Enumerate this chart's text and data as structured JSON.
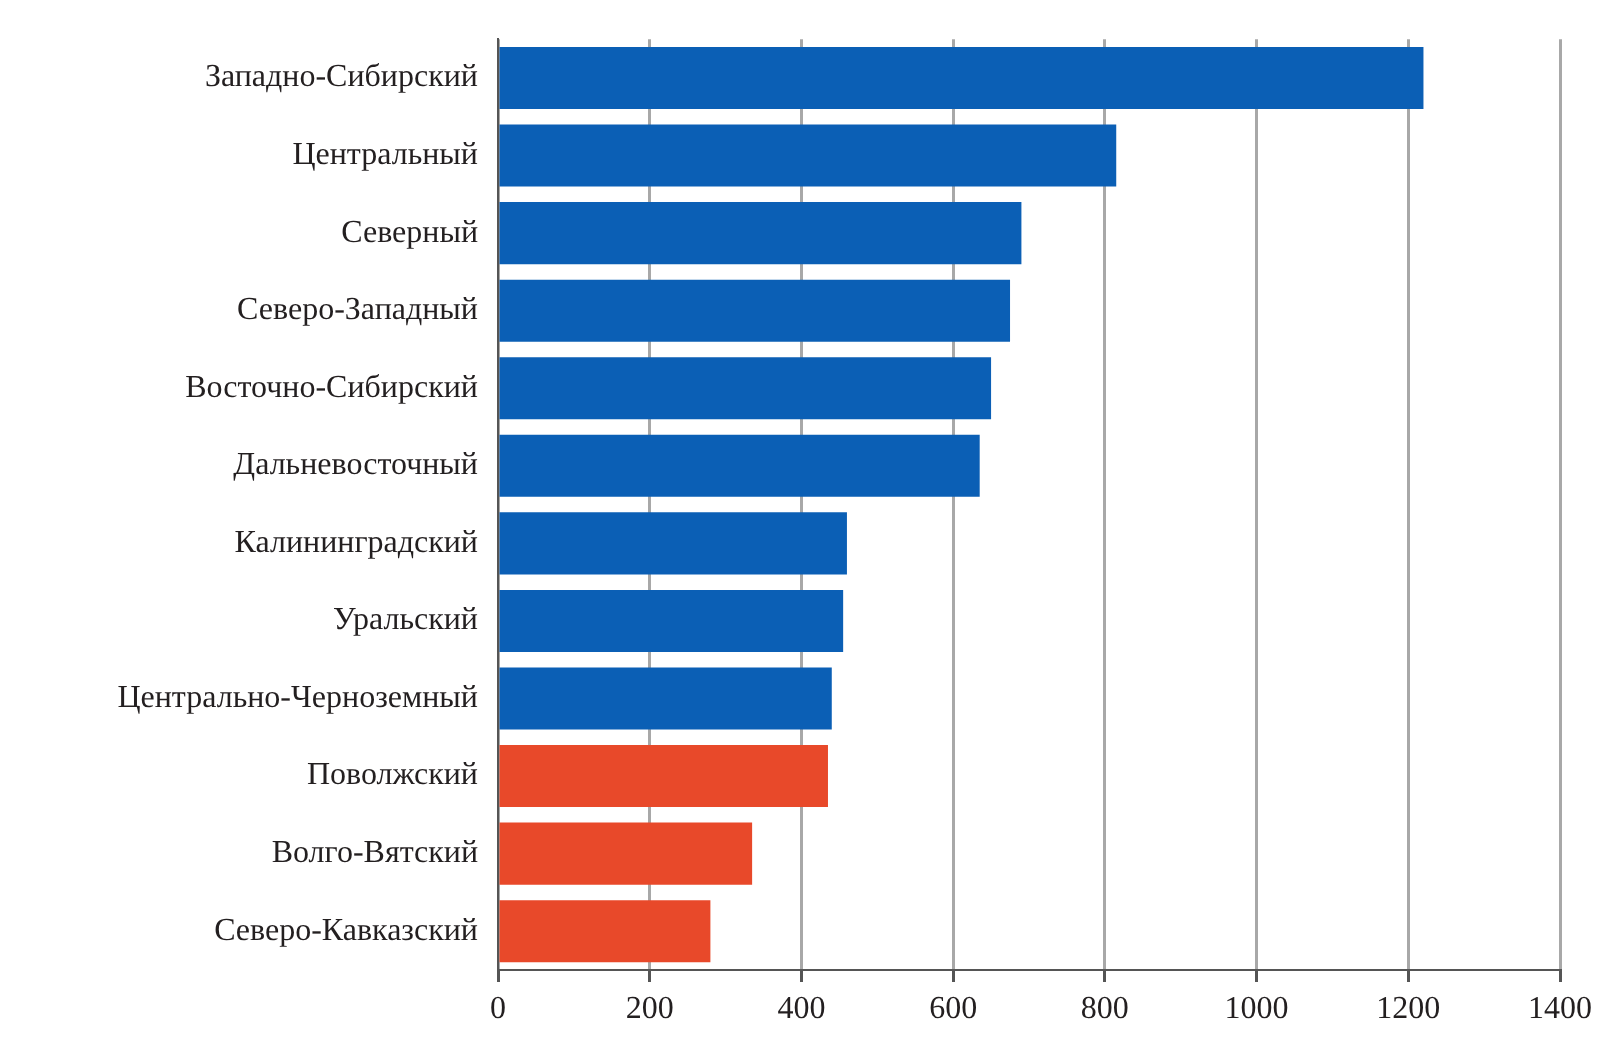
{
  "chart_data": {
    "type": "bar",
    "orientation": "horizontal",
    "categories": [
      "Западно-Сибирский",
      "Центральный",
      "Северный",
      "Северо-Западный",
      "Восточно-Сибирский",
      "Дальневосточный",
      "Калининградский",
      "Уральский",
      "Центрально-Черноземный",
      "Поволжский",
      "Волго-Вятский",
      "Северо-Кавказский"
    ],
    "values": [
      1220,
      815,
      690,
      675,
      650,
      635,
      460,
      455,
      440,
      435,
      335,
      280
    ],
    "colors": [
      "#0b5fb5",
      "#0b5fb5",
      "#0b5fb5",
      "#0b5fb5",
      "#0b5fb5",
      "#0b5fb5",
      "#0b5fb5",
      "#0b5fb5",
      "#0b5fb5",
      "#e8492a",
      "#e8492a",
      "#e8492a"
    ],
    "xlim": [
      0,
      1400
    ],
    "xticks": [
      0,
      200,
      400,
      600,
      800,
      1000,
      1200,
      1400
    ],
    "grid": "x"
  }
}
